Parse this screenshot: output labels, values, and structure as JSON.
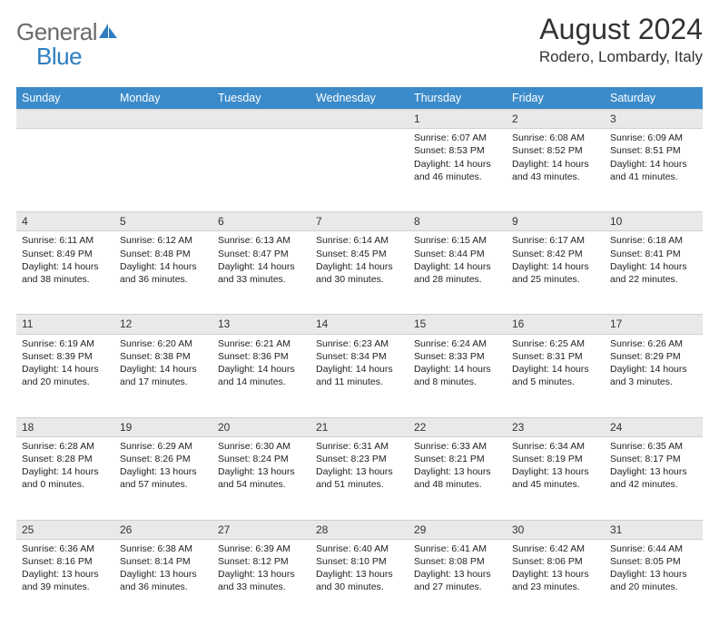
{
  "logo": {
    "general": "General",
    "blue": "Blue"
  },
  "title": "August 2024",
  "location": "Rodero, Lombardy, Italy",
  "colors": {
    "header_bg": "#3b8bca",
    "header_text": "#ffffff",
    "daynum_bg": "#e9e9e9",
    "border": "#cfcfcf",
    "body_text": "#222222",
    "logo_gray": "#6a6a6a",
    "logo_blue": "#2d7dc0"
  },
  "typography": {
    "title_fontsize": 32,
    "location_fontsize": 17,
    "weekday_fontsize": 12.5,
    "daynum_fontsize": 12,
    "cell_fontsize": 10.5
  },
  "weekdays": [
    "Sunday",
    "Monday",
    "Tuesday",
    "Wednesday",
    "Thursday",
    "Friday",
    "Saturday"
  ],
  "weeks": [
    [
      {
        "day": "",
        "sunrise": "",
        "sunset": "",
        "daylight": ""
      },
      {
        "day": "",
        "sunrise": "",
        "sunset": "",
        "daylight": ""
      },
      {
        "day": "",
        "sunrise": "",
        "sunset": "",
        "daylight": ""
      },
      {
        "day": "",
        "sunrise": "",
        "sunset": "",
        "daylight": ""
      },
      {
        "day": "1",
        "sunrise": "Sunrise: 6:07 AM",
        "sunset": "Sunset: 8:53 PM",
        "daylight": "Daylight: 14 hours and 46 minutes."
      },
      {
        "day": "2",
        "sunrise": "Sunrise: 6:08 AM",
        "sunset": "Sunset: 8:52 PM",
        "daylight": "Daylight: 14 hours and 43 minutes."
      },
      {
        "day": "3",
        "sunrise": "Sunrise: 6:09 AM",
        "sunset": "Sunset: 8:51 PM",
        "daylight": "Daylight: 14 hours and 41 minutes."
      }
    ],
    [
      {
        "day": "4",
        "sunrise": "Sunrise: 6:11 AM",
        "sunset": "Sunset: 8:49 PM",
        "daylight": "Daylight: 14 hours and 38 minutes."
      },
      {
        "day": "5",
        "sunrise": "Sunrise: 6:12 AM",
        "sunset": "Sunset: 8:48 PM",
        "daylight": "Daylight: 14 hours and 36 minutes."
      },
      {
        "day": "6",
        "sunrise": "Sunrise: 6:13 AM",
        "sunset": "Sunset: 8:47 PM",
        "daylight": "Daylight: 14 hours and 33 minutes."
      },
      {
        "day": "7",
        "sunrise": "Sunrise: 6:14 AM",
        "sunset": "Sunset: 8:45 PM",
        "daylight": "Daylight: 14 hours and 30 minutes."
      },
      {
        "day": "8",
        "sunrise": "Sunrise: 6:15 AM",
        "sunset": "Sunset: 8:44 PM",
        "daylight": "Daylight: 14 hours and 28 minutes."
      },
      {
        "day": "9",
        "sunrise": "Sunrise: 6:17 AM",
        "sunset": "Sunset: 8:42 PM",
        "daylight": "Daylight: 14 hours and 25 minutes."
      },
      {
        "day": "10",
        "sunrise": "Sunrise: 6:18 AM",
        "sunset": "Sunset: 8:41 PM",
        "daylight": "Daylight: 14 hours and 22 minutes."
      }
    ],
    [
      {
        "day": "11",
        "sunrise": "Sunrise: 6:19 AM",
        "sunset": "Sunset: 8:39 PM",
        "daylight": "Daylight: 14 hours and 20 minutes."
      },
      {
        "day": "12",
        "sunrise": "Sunrise: 6:20 AM",
        "sunset": "Sunset: 8:38 PM",
        "daylight": "Daylight: 14 hours and 17 minutes."
      },
      {
        "day": "13",
        "sunrise": "Sunrise: 6:21 AM",
        "sunset": "Sunset: 8:36 PM",
        "daylight": "Daylight: 14 hours and 14 minutes."
      },
      {
        "day": "14",
        "sunrise": "Sunrise: 6:23 AM",
        "sunset": "Sunset: 8:34 PM",
        "daylight": "Daylight: 14 hours and 11 minutes."
      },
      {
        "day": "15",
        "sunrise": "Sunrise: 6:24 AM",
        "sunset": "Sunset: 8:33 PM",
        "daylight": "Daylight: 14 hours and 8 minutes."
      },
      {
        "day": "16",
        "sunrise": "Sunrise: 6:25 AM",
        "sunset": "Sunset: 8:31 PM",
        "daylight": "Daylight: 14 hours and 5 minutes."
      },
      {
        "day": "17",
        "sunrise": "Sunrise: 6:26 AM",
        "sunset": "Sunset: 8:29 PM",
        "daylight": "Daylight: 14 hours and 3 minutes."
      }
    ],
    [
      {
        "day": "18",
        "sunrise": "Sunrise: 6:28 AM",
        "sunset": "Sunset: 8:28 PM",
        "daylight": "Daylight: 14 hours and 0 minutes."
      },
      {
        "day": "19",
        "sunrise": "Sunrise: 6:29 AM",
        "sunset": "Sunset: 8:26 PM",
        "daylight": "Daylight: 13 hours and 57 minutes."
      },
      {
        "day": "20",
        "sunrise": "Sunrise: 6:30 AM",
        "sunset": "Sunset: 8:24 PM",
        "daylight": "Daylight: 13 hours and 54 minutes."
      },
      {
        "day": "21",
        "sunrise": "Sunrise: 6:31 AM",
        "sunset": "Sunset: 8:23 PM",
        "daylight": "Daylight: 13 hours and 51 minutes."
      },
      {
        "day": "22",
        "sunrise": "Sunrise: 6:33 AM",
        "sunset": "Sunset: 8:21 PM",
        "daylight": "Daylight: 13 hours and 48 minutes."
      },
      {
        "day": "23",
        "sunrise": "Sunrise: 6:34 AM",
        "sunset": "Sunset: 8:19 PM",
        "daylight": "Daylight: 13 hours and 45 minutes."
      },
      {
        "day": "24",
        "sunrise": "Sunrise: 6:35 AM",
        "sunset": "Sunset: 8:17 PM",
        "daylight": "Daylight: 13 hours and 42 minutes."
      }
    ],
    [
      {
        "day": "25",
        "sunrise": "Sunrise: 6:36 AM",
        "sunset": "Sunset: 8:16 PM",
        "daylight": "Daylight: 13 hours and 39 minutes."
      },
      {
        "day": "26",
        "sunrise": "Sunrise: 6:38 AM",
        "sunset": "Sunset: 8:14 PM",
        "daylight": "Daylight: 13 hours and 36 minutes."
      },
      {
        "day": "27",
        "sunrise": "Sunrise: 6:39 AM",
        "sunset": "Sunset: 8:12 PM",
        "daylight": "Daylight: 13 hours and 33 minutes."
      },
      {
        "day": "28",
        "sunrise": "Sunrise: 6:40 AM",
        "sunset": "Sunset: 8:10 PM",
        "daylight": "Daylight: 13 hours and 30 minutes."
      },
      {
        "day": "29",
        "sunrise": "Sunrise: 6:41 AM",
        "sunset": "Sunset: 8:08 PM",
        "daylight": "Daylight: 13 hours and 27 minutes."
      },
      {
        "day": "30",
        "sunrise": "Sunrise: 6:42 AM",
        "sunset": "Sunset: 8:06 PM",
        "daylight": "Daylight: 13 hours and 23 minutes."
      },
      {
        "day": "31",
        "sunrise": "Sunrise: 6:44 AM",
        "sunset": "Sunset: 8:05 PM",
        "daylight": "Daylight: 13 hours and 20 minutes."
      }
    ]
  ]
}
